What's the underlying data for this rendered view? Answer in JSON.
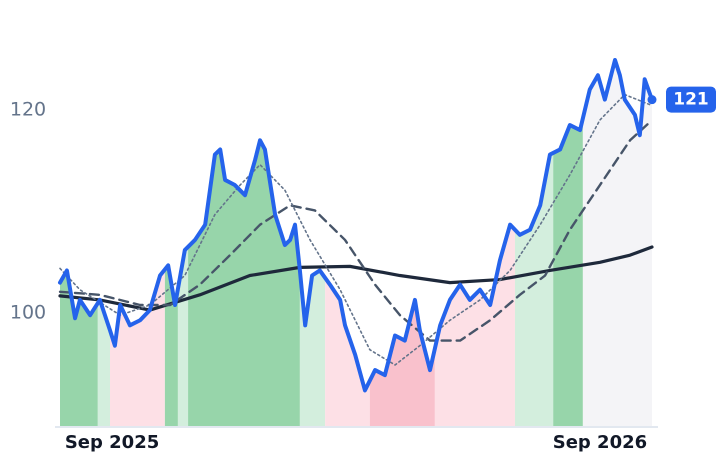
{
  "chart_data": {
    "type": "line",
    "xlim": [
      6.72,
      21.28
    ],
    "xticks": [
      {
        "value": 8,
        "label": "Sep 2025"
      },
      {
        "value": 20,
        "label": "Sep 2026"
      }
    ],
    "ylim": [
      88.8,
      130.8
    ],
    "yticks": [
      100,
      120
    ],
    "series": [
      {
        "color": "#2563eb",
        "dash": "solid",
        "x": [
          6.72,
          6.89,
          7.09,
          7.21,
          7.46,
          7.7,
          7.95,
          8.07,
          8.2,
          8.44,
          8.69,
          8.93,
          9.18,
          9.38,
          9.55,
          9.79,
          10.04,
          10.29,
          10.53,
          10.66,
          10.78,
          11.02,
          11.27,
          11.52,
          11.64,
          11.76,
          12.01,
          12.25,
          12.38,
          12.5,
          12.62,
          12.75,
          12.92,
          13.11,
          13.36,
          13.61,
          13.73,
          13.98,
          14.22,
          14.47,
          14.71,
          14.96,
          15.2,
          15.45,
          15.57,
          15.82,
          16.07,
          16.31,
          16.56,
          16.8,
          17.05,
          17.3,
          17.54,
          17.79,
          18.03,
          18.28,
          18.53,
          18.77,
          19.02,
          19.26,
          19.51,
          19.75,
          19.95,
          20.12,
          20.37,
          20.49,
          20.61,
          20.86,
          20.98,
          21.1,
          21.28
        ],
        "values": [
          103.0,
          104.2,
          99.5,
          101.3,
          99.8,
          101.3,
          98.3,
          96.8,
          100.8,
          98.8,
          99.3,
          100.3,
          103.7,
          104.7,
          100.8,
          106.2,
          107.2,
          108.7,
          115.6,
          116.1,
          113.1,
          112.6,
          111.6,
          115.1,
          117.0,
          116.1,
          109.7,
          106.7,
          107.2,
          108.7,
          104.2,
          98.8,
          103.7,
          104.2,
          102.8,
          101.3,
          98.8,
          95.9,
          92.4,
          94.4,
          93.9,
          97.8,
          97.3,
          101.3,
          98.3,
          94.4,
          98.8,
          101.3,
          102.8,
          101.3,
          102.3,
          100.8,
          105.2,
          108.7,
          107.7,
          108.2,
          110.6,
          115.6,
          116.1,
          118.5,
          118.0,
          122.0,
          123.4,
          121.0,
          124.9,
          123.4,
          121.0,
          119.5,
          117.5,
          123.0,
          121.0
        ]
      },
      {
        "color": "#64748b",
        "dash": "dotted",
        "x": [
          6.72,
          7.21,
          8.2,
          8.93,
          9.79,
          10.53,
          11.15,
          11.64,
          12.25,
          12.87,
          13.61,
          14.34,
          14.96,
          15.57,
          16.31,
          17.05,
          17.79,
          18.53,
          19.26,
          20.0,
          20.61,
          21.23
        ],
        "values": [
          104.4,
          102.3,
          99.8,
          100.8,
          103.7,
          109.7,
          112.6,
          114.6,
          112.1,
          107.2,
          102.3,
          96.4,
          94.9,
          96.8,
          99.3,
          101.3,
          104.2,
          108.7,
          113.6,
          119.0,
          121.5,
          120.5
        ]
      },
      {
        "color": "#475569",
        "dash": "dashed",
        "x": [
          6.72,
          7.7,
          8.69,
          9.43,
          10.16,
          10.9,
          11.64,
          12.38,
          12.99,
          13.73,
          14.47,
          15.08,
          15.82,
          16.56,
          17.3,
          18.03,
          18.65,
          19.26,
          20.0,
          20.74,
          21.23
        ],
        "values": [
          102.1,
          101.8,
          100.8,
          100.8,
          102.8,
          105.7,
          108.7,
          110.6,
          110.1,
          107.2,
          102.8,
          99.8,
          97.3,
          97.3,
          99.3,
          101.8,
          103.7,
          108.2,
          112.6,
          117.0,
          118.8
        ]
      },
      {
        "color": "#1e293b",
        "dash": "solid",
        "x": [
          6.72,
          7.7,
          8.93,
          10.16,
          11.39,
          12.62,
          13.85,
          15.08,
          16.31,
          17.54,
          18.77,
          20.0,
          20.74,
          21.28
        ],
        "values": [
          101.7,
          101.3,
          100.3,
          101.8,
          103.7,
          104.5,
          104.6,
          103.7,
          103.0,
          103.3,
          104.2,
          105.0,
          105.7,
          106.5
        ]
      }
    ],
    "bands": [
      {
        "start": 6.72,
        "end": 7.65,
        "color": "#97d5aa"
      },
      {
        "start": 7.65,
        "end": 7.95,
        "color": "#d3eedd"
      },
      {
        "start": 7.95,
        "end": 9.3,
        "color": "#fde0e6"
      },
      {
        "start": 9.3,
        "end": 9.62,
        "color": "#97d5aa"
      },
      {
        "start": 9.62,
        "end": 9.87,
        "color": "#d3eedd"
      },
      {
        "start": 9.87,
        "end": 12.62,
        "color": "#97d5aa"
      },
      {
        "start": 12.62,
        "end": 13.24,
        "color": "#d3eedd"
      },
      {
        "start": 13.24,
        "end": 14.34,
        "color": "#fde0e6"
      },
      {
        "start": 14.34,
        "end": 15.94,
        "color": "#f9c1cc"
      },
      {
        "start": 15.94,
        "end": 17.91,
        "color": "#fde0e6"
      },
      {
        "start": 17.91,
        "end": 18.85,
        "color": "#d3eedd"
      },
      {
        "start": 18.85,
        "end": 19.58,
        "color": "#97d5aa"
      },
      {
        "start": 19.58,
        "end": 21.28,
        "color": "#f4f4f7"
      }
    ],
    "last_price_label": "121"
  }
}
